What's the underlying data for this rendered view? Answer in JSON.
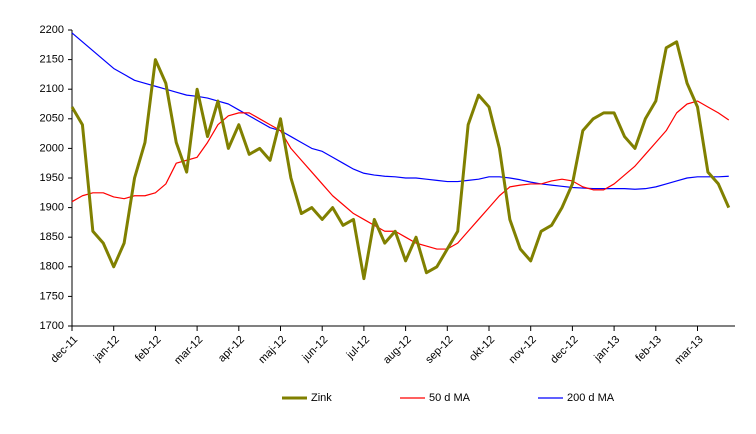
{
  "chart_data": {
    "type": "line",
    "categories": [
      "dec-11",
      null,
      null,
      null,
      "jan-12",
      null,
      null,
      null,
      "feb-12",
      null,
      null,
      null,
      "mar-12",
      null,
      null,
      null,
      "apr-12",
      null,
      null,
      null,
      "maj-12",
      null,
      null,
      null,
      "jun-12",
      null,
      null,
      null,
      "jul-12",
      null,
      null,
      null,
      "aug-12",
      null,
      null,
      null,
      "sep-12",
      null,
      null,
      null,
      "okt-12",
      null,
      null,
      null,
      "nov-12",
      null,
      null,
      null,
      "dec-12",
      null,
      null,
      null,
      "jan-13",
      null,
      null,
      null,
      "feb-13",
      null,
      null,
      null,
      "mar-13",
      null,
      null,
      null
    ],
    "series": [
      {
        "name": "Zink",
        "color": "#808000",
        "values": [
          2070,
          2040,
          1860,
          1840,
          1800,
          1840,
          1950,
          2010,
          2150,
          2110,
          2010,
          1960,
          2100,
          2020,
          2080,
          2000,
          2040,
          1990,
          2000,
          1980,
          2050,
          1950,
          1890,
          1900,
          1880,
          1900,
          1870,
          1880,
          1780,
          1880,
          1840,
          1860,
          1810,
          1850,
          1790,
          1800,
          1830,
          1860,
          2040,
          2090,
          2070,
          2000,
          1880,
          1830,
          1810,
          1860,
          1870,
          1900,
          1940,
          2030,
          2050,
          2060,
          2060,
          2020,
          2000,
          2050,
          2080,
          2170,
          2180,
          2110,
          2070,
          1960,
          1940,
          1900
        ]
      },
      {
        "name": "50 d MA",
        "color": "#ff0000",
        "values": [
          1910,
          1920,
          1925,
          1925,
          1918,
          1915,
          1920,
          1920,
          1925,
          1940,
          1975,
          1980,
          1985,
          2010,
          2040,
          2055,
          2060,
          2060,
          2050,
          2040,
          2030,
          2000,
          1980,
          1960,
          1940,
          1920,
          1905,
          1890,
          1880,
          1870,
          1860,
          1860,
          1850,
          1840,
          1835,
          1830,
          1830,
          1840,
          1860,
          1880,
          1900,
          1920,
          1935,
          1938,
          1940,
          1940,
          1945,
          1948,
          1945,
          1935,
          1930,
          1930,
          1940,
          1955,
          1970,
          1990,
          2010,
          2030,
          2060,
          2075,
          2080,
          2070,
          2060,
          2048
        ]
      },
      {
        "name": "200 d MA",
        "color": "#0000ff",
        "values": [
          2195,
          2180,
          2165,
          2150,
          2135,
          2125,
          2115,
          2110,
          2105,
          2100,
          2095,
          2090,
          2088,
          2085,
          2080,
          2075,
          2065,
          2055,
          2045,
          2035,
          2030,
          2020,
          2010,
          2000,
          1995,
          1985,
          1975,
          1965,
          1958,
          1955,
          1953,
          1952,
          1950,
          1950,
          1948,
          1946,
          1944,
          1944,
          1946,
          1948,
          1952,
          1952,
          1950,
          1947,
          1943,
          1940,
          1938,
          1936,
          1934,
          1933,
          1932,
          1932,
          1932,
          1932,
          1931,
          1932,
          1935,
          1940,
          1945,
          1950,
          1952,
          1952,
          1952,
          1953
        ]
      }
    ],
    "ylim": [
      1700,
      2200
    ],
    "yticks": [
      1700,
      1750,
      1800,
      1850,
      1900,
      1950,
      2000,
      2050,
      2100,
      2150,
      2200
    ],
    "grid": false,
    "legend": "bottom"
  }
}
